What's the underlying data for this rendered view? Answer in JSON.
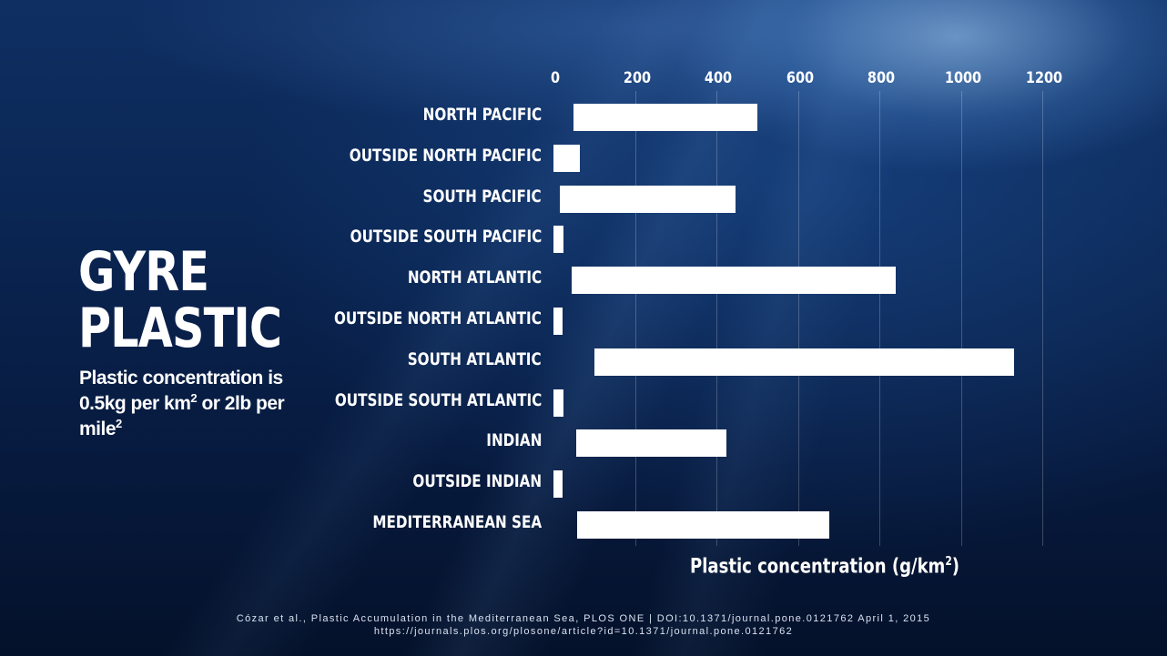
{
  "title_line1": "GYRE",
  "title_line2": "PLASTIC",
  "subtitle_part1": "Plastic concentration is 0.5kg per km",
  "subtitle_sup1": "2",
  "subtitle_part2": " or 2lb per mile",
  "subtitle_sup2": "2",
  "citation_line1": "Cózar et al., Plastic Accumulation in the Mediterranean Sea, PLOS ONE | DOI:10.1371/journal.pone.0121762 April 1, 2015",
  "citation_line2": "https://journals.plos.org/plosone/article?id=10.1371/journal.pone.0121762",
  "colors": {
    "bar": "#ffffff",
    "background": "#0a2552"
  },
  "chart_data": {
    "type": "bar",
    "orientation": "horizontal",
    "categories": [
      "North Pacific",
      "Outside North Pacific",
      "South Pacific",
      "Outside South Pacific",
      "North Atlantic",
      "Outside North Atlantic",
      "South Atlantic",
      "Outside South Atlantic",
      "Indian",
      "Outside Indian",
      "Mediterranean Sea"
    ],
    "ranges": [
      [
        50,
        500
      ],
      [
        0,
        65
      ],
      [
        15,
        448
      ],
      [
        0,
        25
      ],
      [
        45,
        840
      ],
      [
        0,
        22
      ],
      [
        100,
        1130
      ],
      [
        0,
        25
      ],
      [
        55,
        425
      ],
      [
        0,
        22
      ],
      [
        58,
        678
      ]
    ],
    "xlabel_text": "Plastic concentration (g/km",
    "xlabel_sup": "2",
    "xlabel_close": ")",
    "ticks": [
      "0",
      "200",
      "400",
      "600",
      "800",
      "1000",
      "1200"
    ],
    "xlim": [
      0,
      1250
    ],
    "grid": true,
    "axis_position": "top"
  }
}
